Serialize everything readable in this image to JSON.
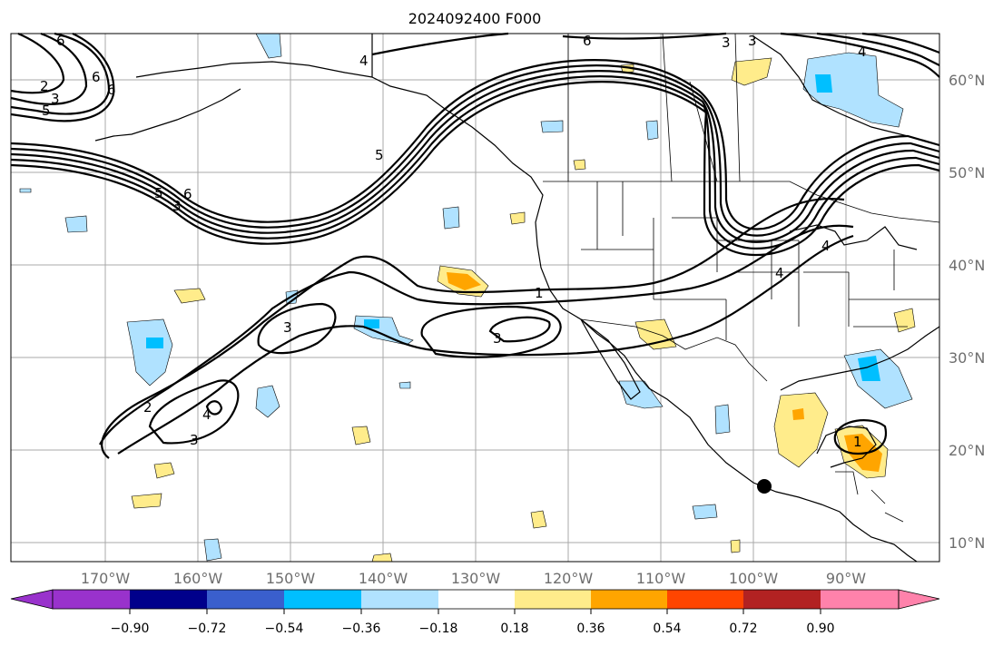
{
  "title": "2024092400 F000",
  "axes": {
    "lon_labels": [
      "170°W",
      "160°W",
      "150°W",
      "140°W",
      "130°W",
      "120°W",
      "110°W",
      "100°W",
      "90°W"
    ],
    "lat_labels": [
      "60°N",
      "50°N",
      "40°N",
      "30°N",
      "20°N",
      "10°N"
    ]
  },
  "colorbar": {
    "tick_labels": [
      "−0.90",
      "−0.72",
      "−0.54",
      "−0.36",
      "−0.18",
      "0.18",
      "0.36",
      "0.54",
      "0.72",
      "0.90"
    ],
    "colors": [
      "#9932cc",
      "#00008b",
      "#3a5fcd",
      "#00bfff",
      "#b0e2ff",
      "#ffffff",
      "#ffec8b",
      "#ffa500",
      "#ff4500",
      "#b22222",
      "#ff82ab"
    ]
  },
  "contour_labels": [
    "6",
    "6",
    "6",
    "5",
    "3",
    "2",
    "5",
    "6",
    "5",
    "3",
    "6",
    "1",
    "3",
    "3",
    "2",
    "4",
    "3",
    "1",
    "3",
    "4",
    "4",
    "4",
    "4",
    "3"
  ],
  "marker": "station-dot"
}
